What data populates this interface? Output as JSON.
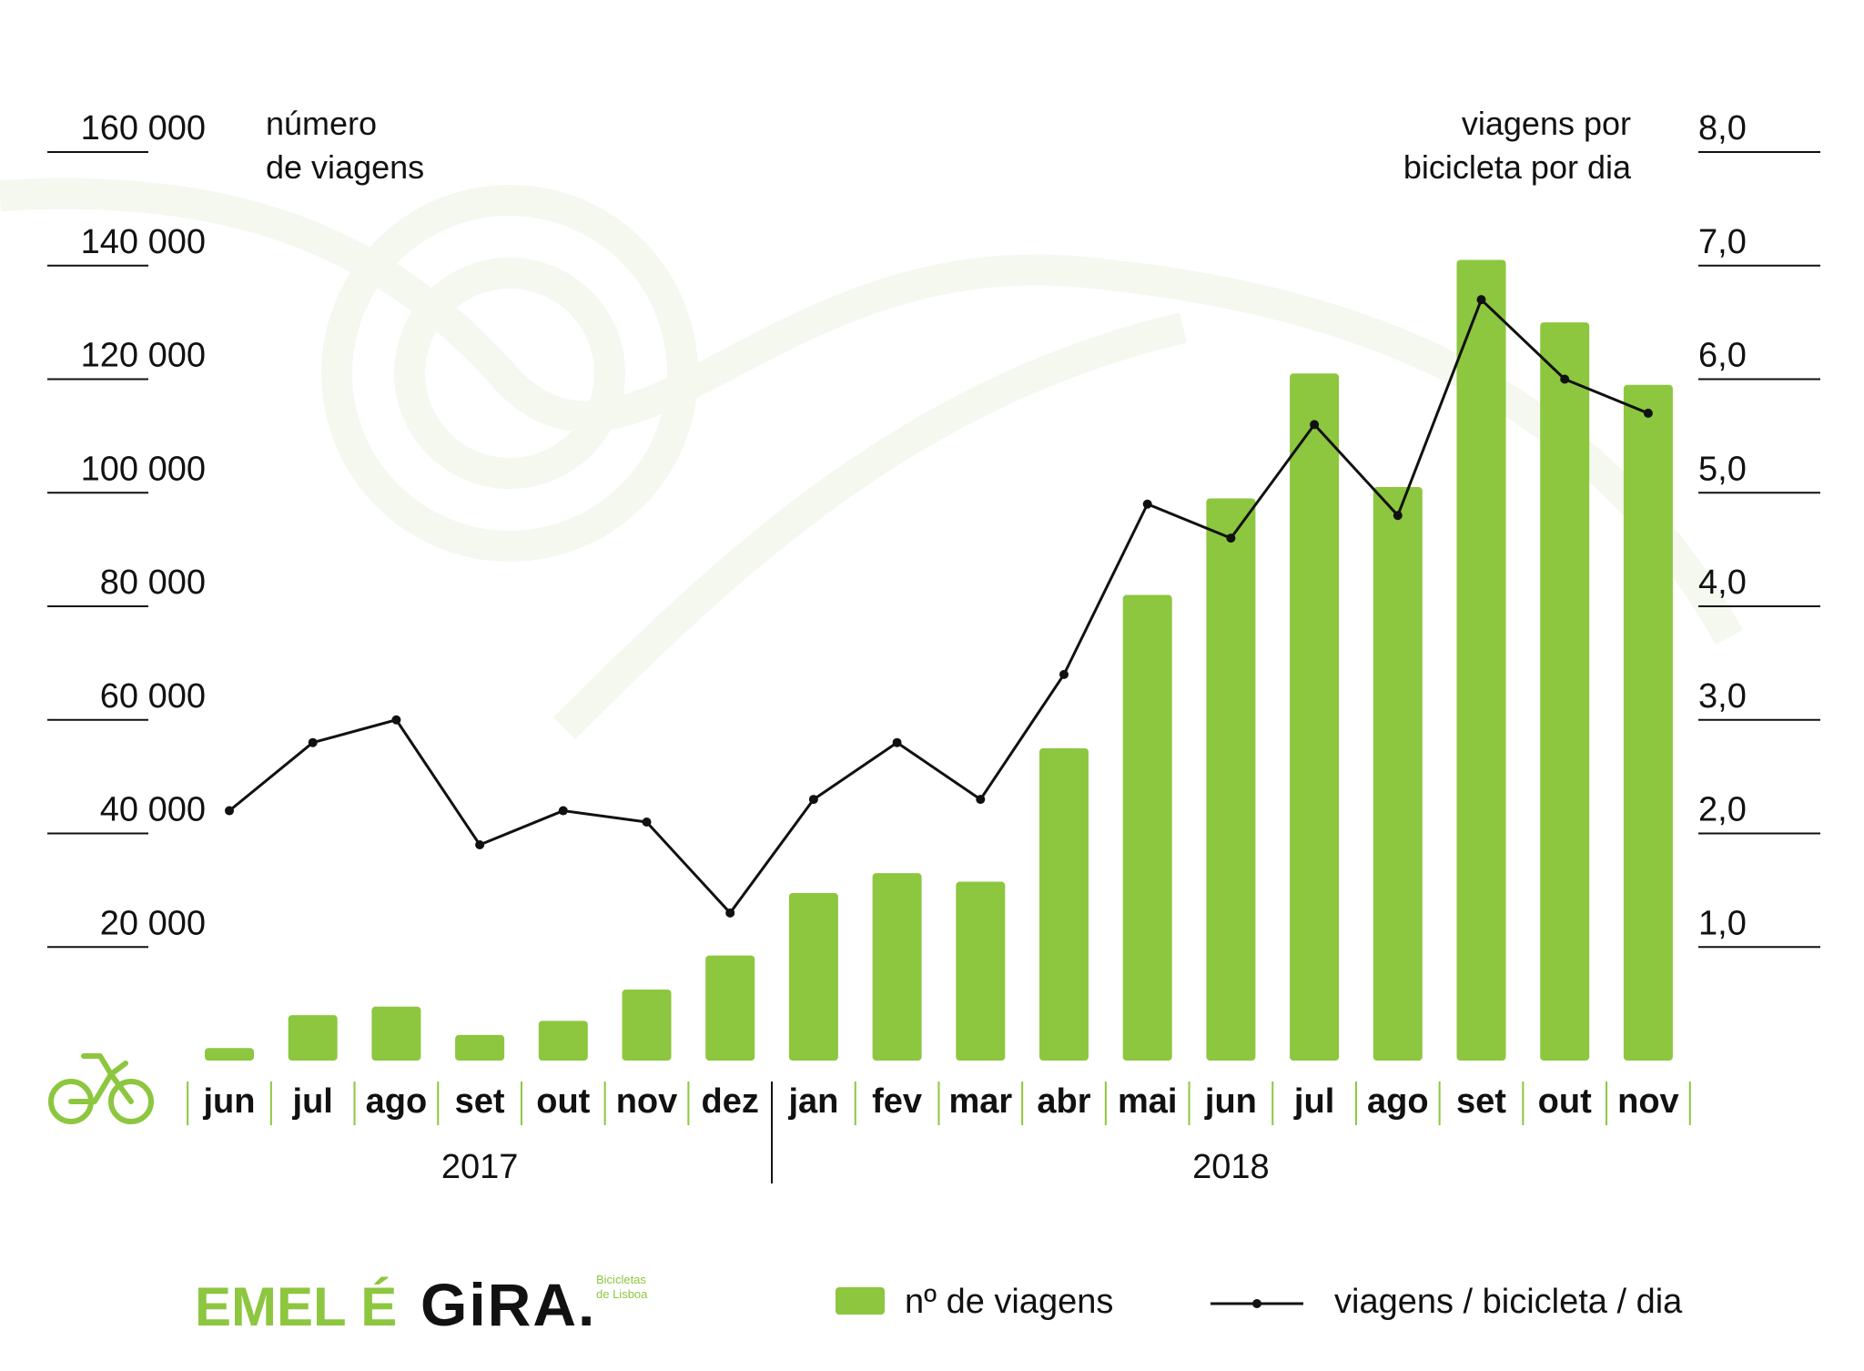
{
  "chart_data": {
    "type": "bar",
    "left_axis": {
      "title_line1": "número",
      "title_line2": "de viagens",
      "ticks": [
        {
          "value": 20000,
          "label": "20 000"
        },
        {
          "value": 40000,
          "label": "40 000"
        },
        {
          "value": 60000,
          "label": "60 000"
        },
        {
          "value": 80000,
          "label": "80 000"
        },
        {
          "value": 100000,
          "label": "100 000"
        },
        {
          "value": 120000,
          "label": "120 000"
        },
        {
          "value": 140000,
          "label": "140 000"
        },
        {
          "value": 160000,
          "label": "160 000"
        }
      ],
      "range": [
        0,
        160000
      ]
    },
    "right_axis": {
      "title_line1": "viagens por",
      "title_line2": "bicicleta por dia",
      "ticks": [
        {
          "value": 1.0,
          "label": "1,0"
        },
        {
          "value": 2.0,
          "label": "2,0"
        },
        {
          "value": 3.0,
          "label": "3,0"
        },
        {
          "value": 4.0,
          "label": "4,0"
        },
        {
          "value": 5.0,
          "label": "5,0"
        },
        {
          "value": 6.0,
          "label": "6,0"
        },
        {
          "value": 7.0,
          "label": "7,0"
        },
        {
          "value": 8.0,
          "label": "8,0"
        }
      ],
      "range": [
        0,
        8.0
      ]
    },
    "categories": [
      "jun",
      "jul",
      "ago",
      "set",
      "out",
      "nov",
      "dez",
      "jan",
      "fev",
      "mar",
      "abr",
      "mai",
      "jun",
      "jul",
      "ago",
      "set",
      "out",
      "nov"
    ],
    "years": [
      {
        "label": "2017",
        "first_index": 0,
        "last_index": 6
      },
      {
        "label": "2018",
        "first_index": 7,
        "last_index": 17
      }
    ],
    "series": [
      {
        "name": "nº de viagens",
        "type": "bar",
        "axis": "left",
        "color": "#8dc63f",
        "values": [
          2200,
          8000,
          9500,
          4500,
          7000,
          12500,
          18500,
          29500,
          33000,
          31500,
          55000,
          82000,
          99000,
          121000,
          101000,
          141000,
          130000,
          119000
        ]
      },
      {
        "name": "viagens / bicicleta / dia",
        "type": "line",
        "axis": "right",
        "color": "#111111",
        "values": [
          2.2,
          2.8,
          3.0,
          1.9,
          2.2,
          2.1,
          1.3,
          2.3,
          2.8,
          2.3,
          3.4,
          4.9,
          4.6,
          5.6,
          4.8,
          6.7,
          6.0,
          5.7
        ]
      }
    ],
    "grid": false,
    "legend_position": "bottom-right"
  },
  "legend": {
    "bars_label": "nº de viagens",
    "line_label": "viagens / bicicleta / dia"
  },
  "brand": {
    "emel": "EMEL É",
    "gira": "GiRA.",
    "tagline_line1": "Bicicletas",
    "tagline_line2": "de Lisboa",
    "green": "#8dc63f"
  },
  "icons": {
    "bike": "bicycle-icon"
  }
}
